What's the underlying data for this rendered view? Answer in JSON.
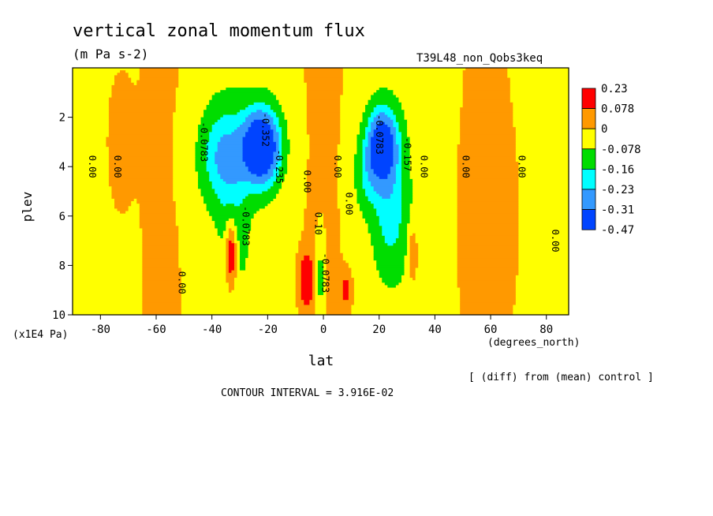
{
  "chart_data": {
    "type": "heatmap",
    "title": "vertical zonal momentum flux",
    "units": "(m Pa s-2)",
    "dataset_label": "T39L48_non_Qobs3keq",
    "xlabel": "lat",
    "xunits": "(degrees_north)",
    "ylabel": "plev",
    "yunits": "(x1E4 Pa)",
    "xlim": [
      -90,
      88
    ],
    "ylim": [
      10,
      0
    ],
    "xticks": [
      -80,
      -60,
      -40,
      -20,
      0,
      20,
      40,
      60,
      80
    ],
    "yticks": [
      2,
      4,
      6,
      8,
      10
    ],
    "xtick_labels": [
      "-80",
      "-60",
      "-40",
      "-20",
      "0",
      "20",
      "40",
      "60",
      "80"
    ],
    "ytick_labels": [
      "2",
      "4",
      "6",
      "8",
      "10"
    ],
    "colorbar": {
      "labels": [
        "0.23",
        "0.078",
        "0",
        "-0.078",
        "-0.16",
        "-0.23",
        "-0.31",
        "-0.47"
      ],
      "colors": [
        "#ff0000",
        "#ff9900",
        "#ffff00",
        "#00dd00",
        "#00ffff",
        "#3399ff",
        "#0044ff"
      ]
    },
    "features": [
      {
        "kind": "negative",
        "lat": -22,
        "plev": 3.2,
        "level": 6
      },
      {
        "kind": "negative",
        "lat": 21,
        "plev": 3.1,
        "level": 5
      },
      {
        "kind": "positive",
        "lat": -33,
        "plev": 7.5,
        "level": 2
      },
      {
        "kind": "positive",
        "lat": -6,
        "plev": 8.6,
        "level": 2
      },
      {
        "kind": "positive",
        "lat": 8,
        "plev": 9.0,
        "level": 1
      },
      {
        "kind": "positive",
        "lat": 32,
        "plev": 7.5,
        "level": 1
      },
      {
        "kind": "negative",
        "lat": -1,
        "plev": 8.5,
        "level": 1
      }
    ],
    "contour_labels": [
      {
        "text": "0.00",
        "lat": -84,
        "plev": 4.0
      },
      {
        "text": "0.00",
        "lat": -75,
        "plev": 4.0
      },
      {
        "text": "0.00",
        "lat": -52,
        "plev": 8.7
      },
      {
        "text": "-0.0783",
        "lat": -44,
        "plev": 3.0
      },
      {
        "text": "-0.352",
        "lat": -22,
        "plev": 2.5
      },
      {
        "text": "-0.235",
        "lat": -17,
        "plev": 4.0
      },
      {
        "text": "-0.0783",
        "lat": -29,
        "plev": 6.4
      },
      {
        "text": "0.00",
        "lat": -7,
        "plev": 4.6
      },
      {
        "text": "0.00",
        "lat": 4,
        "plev": 4.0
      },
      {
        "text": "0.00",
        "lat": 8,
        "plev": 5.5
      },
      {
        "text": "0.10",
        "lat": -3,
        "plev": 6.3
      },
      {
        "text": "-0.0783",
        "lat": -0.5,
        "plev": 8.3
      },
      {
        "text": "-0.0783",
        "lat": 19,
        "plev": 2.7
      },
      {
        "text": "-0.157",
        "lat": 29,
        "plev": 3.5
      },
      {
        "text": "0.00",
        "lat": 35,
        "plev": 4.0
      },
      {
        "text": "0.00",
        "lat": 50,
        "plev": 4.0
      },
      {
        "text": "0.00",
        "lat": 70,
        "plev": 4.0
      },
      {
        "text": "0.00",
        "lat": 82,
        "plev": 7.0
      }
    ],
    "contour_interval": "CONTOUR INTERVAL = 3.916E-02",
    "footnote": "[ (diff) from (mean) control ]"
  }
}
